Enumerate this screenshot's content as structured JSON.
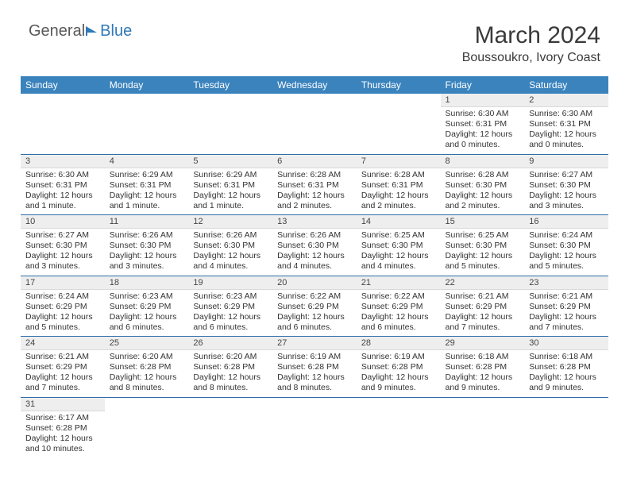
{
  "logo": {
    "general": "General",
    "blue": "Blue"
  },
  "title": "March 2024",
  "location": "Boussoukro, Ivory Coast",
  "colors": {
    "header_bg": "#3b83bd",
    "header_text": "#ffffff",
    "row_border": "#2f6da8",
    "daynum_bg": "#eeeeee",
    "logo_blue": "#2f79b8"
  },
  "weekdays": [
    "Sunday",
    "Monday",
    "Tuesday",
    "Wednesday",
    "Thursday",
    "Friday",
    "Saturday"
  ],
  "cells": [
    {
      "n": "",
      "sr": "",
      "ss": "",
      "dl": ""
    },
    {
      "n": "",
      "sr": "",
      "ss": "",
      "dl": ""
    },
    {
      "n": "",
      "sr": "",
      "ss": "",
      "dl": ""
    },
    {
      "n": "",
      "sr": "",
      "ss": "",
      "dl": ""
    },
    {
      "n": "",
      "sr": "",
      "ss": "",
      "dl": ""
    },
    {
      "n": "1",
      "sr": "Sunrise: 6:30 AM",
      "ss": "Sunset: 6:31 PM",
      "dl": "Daylight: 12 hours and 0 minutes."
    },
    {
      "n": "2",
      "sr": "Sunrise: 6:30 AM",
      "ss": "Sunset: 6:31 PM",
      "dl": "Daylight: 12 hours and 0 minutes."
    },
    {
      "n": "3",
      "sr": "Sunrise: 6:30 AM",
      "ss": "Sunset: 6:31 PM",
      "dl": "Daylight: 12 hours and 1 minute."
    },
    {
      "n": "4",
      "sr": "Sunrise: 6:29 AM",
      "ss": "Sunset: 6:31 PM",
      "dl": "Daylight: 12 hours and 1 minute."
    },
    {
      "n": "5",
      "sr": "Sunrise: 6:29 AM",
      "ss": "Sunset: 6:31 PM",
      "dl": "Daylight: 12 hours and 1 minute."
    },
    {
      "n": "6",
      "sr": "Sunrise: 6:28 AM",
      "ss": "Sunset: 6:31 PM",
      "dl": "Daylight: 12 hours and 2 minutes."
    },
    {
      "n": "7",
      "sr": "Sunrise: 6:28 AM",
      "ss": "Sunset: 6:31 PM",
      "dl": "Daylight: 12 hours and 2 minutes."
    },
    {
      "n": "8",
      "sr": "Sunrise: 6:28 AM",
      "ss": "Sunset: 6:30 PM",
      "dl": "Daylight: 12 hours and 2 minutes."
    },
    {
      "n": "9",
      "sr": "Sunrise: 6:27 AM",
      "ss": "Sunset: 6:30 PM",
      "dl": "Daylight: 12 hours and 3 minutes."
    },
    {
      "n": "10",
      "sr": "Sunrise: 6:27 AM",
      "ss": "Sunset: 6:30 PM",
      "dl": "Daylight: 12 hours and 3 minutes."
    },
    {
      "n": "11",
      "sr": "Sunrise: 6:26 AM",
      "ss": "Sunset: 6:30 PM",
      "dl": "Daylight: 12 hours and 3 minutes."
    },
    {
      "n": "12",
      "sr": "Sunrise: 6:26 AM",
      "ss": "Sunset: 6:30 PM",
      "dl": "Daylight: 12 hours and 4 minutes."
    },
    {
      "n": "13",
      "sr": "Sunrise: 6:26 AM",
      "ss": "Sunset: 6:30 PM",
      "dl": "Daylight: 12 hours and 4 minutes."
    },
    {
      "n": "14",
      "sr": "Sunrise: 6:25 AM",
      "ss": "Sunset: 6:30 PM",
      "dl": "Daylight: 12 hours and 4 minutes."
    },
    {
      "n": "15",
      "sr": "Sunrise: 6:25 AM",
      "ss": "Sunset: 6:30 PM",
      "dl": "Daylight: 12 hours and 5 minutes."
    },
    {
      "n": "16",
      "sr": "Sunrise: 6:24 AM",
      "ss": "Sunset: 6:30 PM",
      "dl": "Daylight: 12 hours and 5 minutes."
    },
    {
      "n": "17",
      "sr": "Sunrise: 6:24 AM",
      "ss": "Sunset: 6:29 PM",
      "dl": "Daylight: 12 hours and 5 minutes."
    },
    {
      "n": "18",
      "sr": "Sunrise: 6:23 AM",
      "ss": "Sunset: 6:29 PM",
      "dl": "Daylight: 12 hours and 6 minutes."
    },
    {
      "n": "19",
      "sr": "Sunrise: 6:23 AM",
      "ss": "Sunset: 6:29 PM",
      "dl": "Daylight: 12 hours and 6 minutes."
    },
    {
      "n": "20",
      "sr": "Sunrise: 6:22 AM",
      "ss": "Sunset: 6:29 PM",
      "dl": "Daylight: 12 hours and 6 minutes."
    },
    {
      "n": "21",
      "sr": "Sunrise: 6:22 AM",
      "ss": "Sunset: 6:29 PM",
      "dl": "Daylight: 12 hours and 6 minutes."
    },
    {
      "n": "22",
      "sr": "Sunrise: 6:21 AM",
      "ss": "Sunset: 6:29 PM",
      "dl": "Daylight: 12 hours and 7 minutes."
    },
    {
      "n": "23",
      "sr": "Sunrise: 6:21 AM",
      "ss": "Sunset: 6:29 PM",
      "dl": "Daylight: 12 hours and 7 minutes."
    },
    {
      "n": "24",
      "sr": "Sunrise: 6:21 AM",
      "ss": "Sunset: 6:29 PM",
      "dl": "Daylight: 12 hours and 7 minutes."
    },
    {
      "n": "25",
      "sr": "Sunrise: 6:20 AM",
      "ss": "Sunset: 6:28 PM",
      "dl": "Daylight: 12 hours and 8 minutes."
    },
    {
      "n": "26",
      "sr": "Sunrise: 6:20 AM",
      "ss": "Sunset: 6:28 PM",
      "dl": "Daylight: 12 hours and 8 minutes."
    },
    {
      "n": "27",
      "sr": "Sunrise: 6:19 AM",
      "ss": "Sunset: 6:28 PM",
      "dl": "Daylight: 12 hours and 8 minutes."
    },
    {
      "n": "28",
      "sr": "Sunrise: 6:19 AM",
      "ss": "Sunset: 6:28 PM",
      "dl": "Daylight: 12 hours and 9 minutes."
    },
    {
      "n": "29",
      "sr": "Sunrise: 6:18 AM",
      "ss": "Sunset: 6:28 PM",
      "dl": "Daylight: 12 hours and 9 minutes."
    },
    {
      "n": "30",
      "sr": "Sunrise: 6:18 AM",
      "ss": "Sunset: 6:28 PM",
      "dl": "Daylight: 12 hours and 9 minutes."
    },
    {
      "n": "31",
      "sr": "Sunrise: 6:17 AM",
      "ss": "Sunset: 6:28 PM",
      "dl": "Daylight: 12 hours and 10 minutes."
    },
    {
      "n": "",
      "sr": "",
      "ss": "",
      "dl": ""
    },
    {
      "n": "",
      "sr": "",
      "ss": "",
      "dl": ""
    },
    {
      "n": "",
      "sr": "",
      "ss": "",
      "dl": ""
    },
    {
      "n": "",
      "sr": "",
      "ss": "",
      "dl": ""
    },
    {
      "n": "",
      "sr": "",
      "ss": "",
      "dl": ""
    },
    {
      "n": "",
      "sr": "",
      "ss": "",
      "dl": ""
    }
  ]
}
